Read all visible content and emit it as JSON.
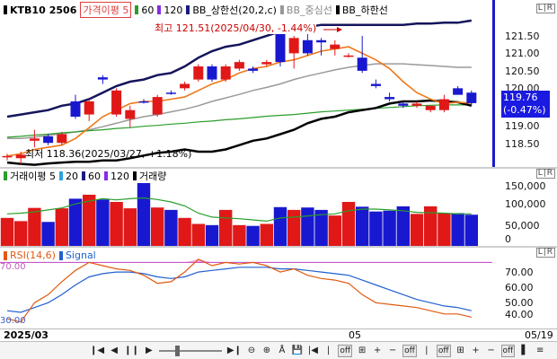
{
  "price_pane": {
    "legend": {
      "symbol": "KTB10",
      "code": "2506",
      "ma_label": "가격이평",
      "ma_period": "5",
      "ma60": "60",
      "ma120": "120",
      "bb_upper": "BB_상한선(20,2,c)",
      "bb_mid": "BB_중심선",
      "bb_lower": "BB_하한선"
    },
    "high_annotation": "최고 121.51(2025/04/30, -1.44%)",
    "low_annotation": "최저 118.36(2025/03/27, +1.18%)",
    "current_price": "119.76",
    "current_change": "(-0.47%)",
    "y_ticks": [
      "121.50",
      "121.00",
      "120.50",
      "120.00",
      "119.50",
      "119.00",
      "118.50"
    ],
    "corner": "L|R"
  },
  "volume_pane": {
    "legend": {
      "ma_label": "거래이평",
      "ma1": "5",
      "ma2": "20",
      "ma3": "60",
      "ma4": "120",
      "volume": "거래량"
    },
    "y_ticks": [
      "150,000",
      "100,000",
      "50,000",
      "0"
    ],
    "corner": "L|R"
  },
  "rsi_pane": {
    "legend": {
      "rsi": "RSI(14,6)",
      "signal": "Signal"
    },
    "left_label_top": "70.00",
    "left_label_bottom": "30.00",
    "y_ticks": [
      "70.00",
      "60.00",
      "50.00",
      "40.00"
    ],
    "corner": "L|R"
  },
  "x_axis": {
    "left_label": "2025/03",
    "mid_label": "05",
    "right_label": "05/19"
  },
  "toolbar": {
    "buttons": [
      "❙◀",
      "◀",
      "❙❙",
      "▶",
      "▶❙",
      "⊖",
      "⊕",
      "Å",
      "💾",
      "|◀",
      "|",
      "off",
      "⊞",
      "+",
      "−",
      "off",
      "|",
      "off",
      "⊞",
      "+",
      "−",
      "off",
      "▌",
      "≡"
    ]
  },
  "chart_data": {
    "type": "candlestick",
    "candles": [
      {
        "o": 118.53,
        "h": 118.6,
        "l": 118.45,
        "c": 118.55
      },
      {
        "o": 118.5,
        "h": 118.65,
        "l": 118.36,
        "c": 118.58
      },
      {
        "o": 118.9,
        "h": 119.15,
        "l": 118.75,
        "c": 118.95
      },
      {
        "o": 119.0,
        "h": 119.05,
        "l": 118.8,
        "c": 118.85
      },
      {
        "o": 118.85,
        "h": 119.1,
        "l": 118.8,
        "c": 119.05
      },
      {
        "o": 119.8,
        "h": 119.95,
        "l": 119.4,
        "c": 119.45
      },
      {
        "o": 119.5,
        "h": 119.85,
        "l": 119.35,
        "c": 119.8
      },
      {
        "o": 120.35,
        "h": 120.4,
        "l": 120.2,
        "c": 120.3
      },
      {
        "o": 119.5,
        "h": 120.1,
        "l": 119.45,
        "c": 120.05
      },
      {
        "o": 119.4,
        "h": 119.7,
        "l": 119.2,
        "c": 119.6
      },
      {
        "o": 119.8,
        "h": 119.85,
        "l": 119.75,
        "c": 119.78
      },
      {
        "o": 119.5,
        "h": 119.95,
        "l": 119.45,
        "c": 119.9
      },
      {
        "o": 120.0,
        "h": 120.05,
        "l": 119.95,
        "c": 119.98
      },
      {
        "o": 120.1,
        "h": 120.25,
        "l": 120.05,
        "c": 120.2
      },
      {
        "o": 120.3,
        "h": 120.65,
        "l": 120.25,
        "c": 120.6
      },
      {
        "o": 120.6,
        "h": 120.65,
        "l": 120.25,
        "c": 120.3
      },
      {
        "o": 120.3,
        "h": 120.65,
        "l": 120.25,
        "c": 120.6
      },
      {
        "o": 120.55,
        "h": 120.75,
        "l": 120.5,
        "c": 120.7
      },
      {
        "o": 120.55,
        "h": 120.6,
        "l": 120.45,
        "c": 120.5
      },
      {
        "o": 120.65,
        "h": 120.75,
        "l": 120.6,
        "c": 120.7
      },
      {
        "o": 121.4,
        "h": 121.51,
        "l": 120.6,
        "c": 120.7
      },
      {
        "o": 120.9,
        "h": 121.3,
        "l": 120.55,
        "c": 121.25
      },
      {
        "o": 121.2,
        "h": 121.4,
        "l": 120.85,
        "c": 120.9
      },
      {
        "o": 121.2,
        "h": 121.25,
        "l": 120.85,
        "c": 121.15
      },
      {
        "o": 121.0,
        "h": 121.2,
        "l": 120.85,
        "c": 121.1
      },
      {
        "o": 120.85,
        "h": 120.9,
        "l": 120.8,
        "c": 120.85
      },
      {
        "o": 120.8,
        "h": 121.3,
        "l": 120.45,
        "c": 120.5
      },
      {
        "o": 120.2,
        "h": 120.3,
        "l": 120.1,
        "c": 120.15
      },
      {
        "o": 119.9,
        "h": 120.0,
        "l": 119.8,
        "c": 119.85
      },
      {
        "o": 119.75,
        "h": 119.8,
        "l": 119.65,
        "c": 119.7
      },
      {
        "o": 119.7,
        "h": 119.8,
        "l": 119.65,
        "c": 119.75
      },
      {
        "o": 119.6,
        "h": 119.7,
        "l": 119.55,
        "c": 119.7
      },
      {
        "o": 119.6,
        "h": 119.95,
        "l": 119.55,
        "c": 119.85
      },
      {
        "o": 120.1,
        "h": 120.15,
        "l": 119.95,
        "c": 119.95
      },
      {
        "o": 120.0,
        "h": 120.05,
        "l": 119.7,
        "c": 119.76
      }
    ],
    "ma5": [
      118.55,
      118.6,
      118.7,
      118.75,
      118.8,
      118.95,
      119.2,
      119.45,
      119.6,
      119.75,
      119.8,
      119.8,
      119.85,
      119.9,
      120.05,
      120.2,
      120.3,
      120.45,
      120.55,
      120.6,
      120.7,
      120.75,
      120.85,
      120.95,
      121.0,
      121.05,
      120.9,
      120.75,
      120.55,
      120.25,
      120.0,
      119.85,
      119.75,
      119.78,
      119.76
    ],
    "bb_upper": [
      119.45,
      119.5,
      119.55,
      119.6,
      119.7,
      119.75,
      119.85,
      120.0,
      120.15,
      120.25,
      120.3,
      120.4,
      120.45,
      120.6,
      120.8,
      120.95,
      121.05,
      121.1,
      121.2,
      121.3,
      121.4,
      121.45,
      121.5,
      121.55,
      121.55,
      121.55,
      121.55,
      121.55,
      121.55,
      121.55,
      121.58,
      121.58,
      121.6,
      121.6,
      121.65
    ],
    "bb_mid": [
      118.95,
      118.95,
      118.98,
      119.02,
      119.06,
      119.1,
      119.15,
      119.22,
      119.3,
      119.38,
      119.45,
      119.5,
      119.56,
      119.62,
      119.7,
      119.8,
      119.88,
      119.96,
      120.05,
      120.12,
      120.2,
      120.3,
      120.38,
      120.45,
      120.52,
      120.58,
      120.62,
      120.66,
      120.66,
      120.66,
      120.64,
      120.62,
      120.6,
      120.58,
      120.58
    ],
    "bb_lower": [
      118.4,
      118.37,
      118.35,
      118.38,
      118.4,
      118.42,
      118.42,
      118.45,
      118.45,
      118.5,
      118.56,
      118.62,
      118.65,
      118.7,
      118.65,
      118.65,
      118.7,
      118.8,
      118.9,
      118.95,
      119.05,
      119.15,
      119.3,
      119.4,
      119.45,
      119.55,
      119.6,
      119.65,
      119.75,
      119.8,
      119.8,
      119.82,
      119.8,
      119.78,
      119.7
    ],
    "ma60": [
      118.98,
      119.0,
      119.03,
      119.05,
      119.08,
      119.1,
      119.13,
      119.15,
      119.18,
      119.2,
      119.23,
      119.25,
      119.28,
      119.3,
      119.33,
      119.35,
      119.38,
      119.4,
      119.43,
      119.46,
      119.48,
      119.5,
      119.53,
      119.56,
      119.58,
      119.6,
      119.62,
      119.64,
      119.66,
      119.68,
      119.7,
      119.71,
      119.72,
      119.72,
      119.72
    ],
    "ylim": [
      118.3,
      121.75
    ],
    "volume": [
      70000,
      62000,
      95000,
      60000,
      94000,
      118000,
      128000,
      116000,
      110000,
      94000,
      164000,
      96000,
      90000,
      70000,
      55000,
      52000,
      90000,
      52000,
      50000,
      55000,
      97000,
      90000,
      96000,
      90000,
      76000,
      110000,
      98000,
      86000,
      88000,
      99000,
      80000,
      99000,
      82000,
      82000,
      78000
    ],
    "volume_ma": [
      80000,
      82000,
      85000,
      90000,
      95000,
      105000,
      112000,
      118000,
      115000,
      118000,
      120000,
      116000,
      110000,
      100000,
      82000,
      72000,
      70000,
      68000,
      65000,
      62000,
      70000,
      72000,
      75000,
      78000,
      80000,
      88000,
      92000,
      92000,
      90000,
      88000,
      84000,
      83000,
      82000,
      80000,
      80000
    ],
    "volume_ylim": [
      0,
      175000
    ],
    "rsi": [
      35,
      33,
      45,
      50,
      58,
      65,
      70,
      68,
      66,
      65,
      62,
      57,
      58,
      64,
      72,
      68,
      70,
      69,
      70,
      68,
      64,
      66,
      62,
      60,
      59,
      57,
      50,
      45,
      44,
      43,
      42,
      40,
      38,
      38,
      36
    ],
    "rsi_signal": [
      40,
      39,
      42,
      45,
      50,
      56,
      61,
      63,
      64,
      64,
      63,
      61,
      60,
      61,
      64,
      65,
      66,
      67,
      67,
      67,
      66,
      66,
      65,
      64,
      63,
      62,
      59,
      56,
      53,
      50,
      47,
      45,
      43,
      42,
      40
    ],
    "rsi_ylim": [
      29,
      78
    ],
    "rsi_overbought": 70
  }
}
